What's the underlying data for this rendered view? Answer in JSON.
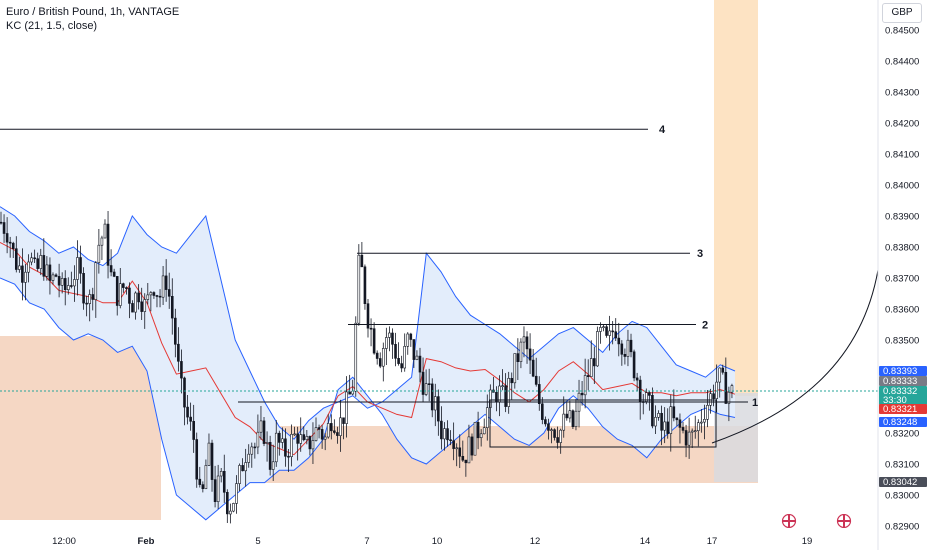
{
  "header": {
    "title": "Euro / British Pound, 1h, VANTAGE",
    "indicator": "KC (21, 1.5, close)",
    "currency": "GBP"
  },
  "colors": {
    "candle": "#131722",
    "keltner_band": "#2962ff",
    "keltner_fill": "#e3edfb",
    "keltner_basis": "#e53935",
    "demand_zone": "#f5d7c4",
    "forecast_zone": "#fde3c3",
    "projection_box": "#d9dbdf",
    "last_price_line": "#26a69a"
  },
  "chart_data": {
    "type": "candlestick",
    "symbol": "EURGBP",
    "y_ticks": [
      "0.84500",
      "0.84400",
      "0.84300",
      "0.84200",
      "0.84100",
      "0.84000",
      "0.83900",
      "0.83800",
      "0.83700",
      "0.83600",
      "0.83500",
      "0.83200",
      "0.83100",
      "0.83000",
      "0.82900"
    ],
    "x_ticks": [
      "12:00",
      "Feb",
      "5",
      "7",
      "10",
      "12",
      "14",
      "17",
      "19"
    ],
    "y_range": [
      0.8287,
      0.8456
    ],
    "horizontal_levels": [
      {
        "label": "4",
        "price": 0.8418
      },
      {
        "label": "3",
        "price": 0.8378
      },
      {
        "label": "2",
        "price": 0.8355
      },
      {
        "label": "1",
        "price": 0.833
      }
    ],
    "range_box_top": 0.8331,
    "range_box_bottom": 0.8315,
    "price_labels": [
      {
        "value": "0.83393",
        "color": "#2962ff"
      },
      {
        "value": "0.83333",
        "color": "#787b86"
      },
      {
        "value": "0.83332",
        "value2": "33:30",
        "color": "#26a69a"
      },
      {
        "value": "0.83321",
        "color": "#e53935"
      },
      {
        "value": "0.83248",
        "color": "#2962ff"
      },
      {
        "value": "0.83042",
        "color": "#4a4e59"
      }
    ],
    "price_path": [
      0.8388,
      0.8385,
      0.8376,
      0.8372,
      0.8378,
      0.8371,
      0.8376,
      0.8368,
      0.8371,
      0.8365,
      0.8369,
      0.8373,
      0.8366,
      0.8362,
      0.838,
      0.8385,
      0.837,
      0.8364,
      0.8368,
      0.8362,
      0.8366,
      0.836,
      0.8369,
      0.8364,
      0.837,
      0.8355,
      0.8335,
      0.8325,
      0.8318,
      0.8295,
      0.8315,
      0.83,
      0.8305,
      0.8296,
      0.83,
      0.831,
      0.8318,
      0.8315,
      0.8322,
      0.831,
      0.8318,
      0.8313,
      0.8317,
      0.832,
      0.8314,
      0.8318,
      0.8322,
      0.8318,
      0.8326,
      0.8322,
      0.8328,
      0.8335,
      0.8378,
      0.836,
      0.835,
      0.8345,
      0.8352,
      0.8348,
      0.834,
      0.835,
      0.8345,
      0.8338,
      0.8332,
      0.8328,
      0.832,
      0.8322,
      0.8318,
      0.8312,
      0.8316,
      0.832,
      0.8325,
      0.833,
      0.8334,
      0.833,
      0.8338,
      0.8345,
      0.835,
      0.8338,
      0.833,
      0.8325,
      0.8322,
      0.832,
      0.8325,
      0.8322,
      0.8332,
      0.8338,
      0.8345,
      0.8352,
      0.8348,
      0.8355,
      0.835,
      0.8346,
      0.834,
      0.8332,
      0.8328,
      0.8324,
      0.832,
      0.8325,
      0.8322,
      0.832,
      0.8318,
      0.8322,
      0.8328,
      0.8332,
      0.8338,
      0.8334,
      0.8333
    ],
    "upper_band": [
      0.8393,
      0.839,
      0.8385,
      0.8382,
      0.8378,
      0.838,
      0.8376,
      0.8374,
      0.8378,
      0.839,
      0.8384,
      0.838,
      0.8378,
      0.8384,
      0.839,
      0.837,
      0.835,
      0.834,
      0.833,
      0.8322,
      0.8318,
      0.8324,
      0.8328,
      0.833,
      0.8332,
      0.8328,
      0.833,
      0.8334,
      0.8338,
      0.8378,
      0.8372,
      0.8364,
      0.8358,
      0.8355,
      0.8352,
      0.8348,
      0.8344,
      0.8348,
      0.8352,
      0.8354,
      0.835,
      0.8346,
      0.8352,
      0.8356,
      0.8354,
      0.8348,
      0.8342,
      0.834,
      0.8338,
      0.8342,
      0.834
    ],
    "lower_band": [
      0.837,
      0.8368,
      0.8362,
      0.836,
      0.8354,
      0.835,
      0.8352,
      0.835,
      0.8346,
      0.8348,
      0.834,
      0.8318,
      0.83,
      0.8296,
      0.8292,
      0.8296,
      0.83,
      0.8304,
      0.8304,
      0.8308,
      0.8308,
      0.8312,
      0.8318,
      0.8334,
      0.8338,
      0.8332,
      0.8326,
      0.8318,
      0.8312,
      0.831,
      0.8314,
      0.8318,
      0.8322,
      0.8326,
      0.8322,
      0.8318,
      0.8316,
      0.832,
      0.8328,
      0.8332,
      0.8328,
      0.8322,
      0.8318,
      0.8316,
      0.8312,
      0.8318,
      0.8322,
      0.8326,
      0.8328,
      0.8326,
      0.8325
    ]
  }
}
